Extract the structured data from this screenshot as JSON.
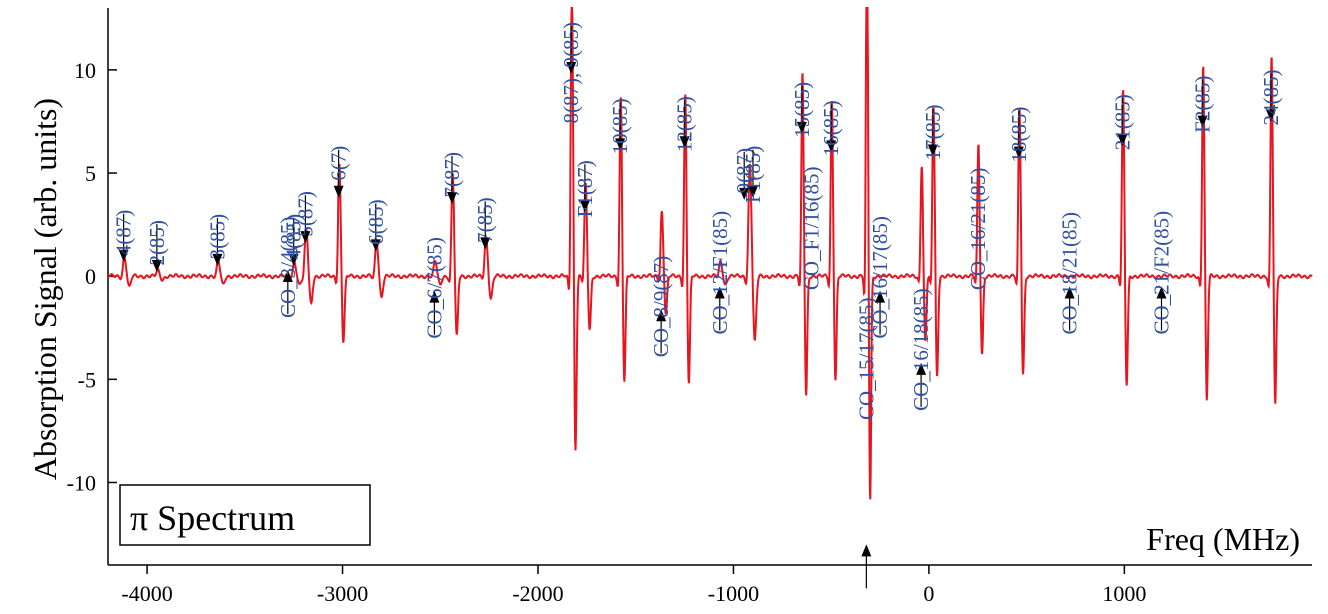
{
  "chart_data": {
    "type": "line",
    "title": "",
    "xlabel": "Freq (MHz)",
    "ylabel": "Absorption Signal (arb. units)",
    "xlim": [
      -4200,
      1960
    ],
    "ylim": [
      -14,
      13
    ],
    "grid": false,
    "legend_box": "π  Spectrum",
    "line_color": "#e8141e",
    "annotation_color": "#2f4f9f",
    "x_ticks": [
      -4000,
      -3000,
      -2000,
      -1000,
      0,
      1000
    ],
    "x_tick_labels": [
      "-4000",
      "-3000",
      "-2000",
      "-1000",
      "0",
      "1000"
    ],
    "y_ticks": [
      -10,
      -5,
      0,
      5,
      10
    ],
    "y_tick_labels": [
      "-10",
      "-5",
      "0",
      "5",
      "10"
    ],
    "peaks": [
      {
        "x": -4120,
        "amp": 0.65,
        "w": 12
      },
      {
        "x": -3950,
        "amp": 0.2,
        "w": 12
      },
      {
        "x": -3640,
        "amp": 0.5,
        "w": 12
      },
      {
        "x": -3250,
        "amp": 0.5,
        "w": 12
      },
      {
        "x": -3190,
        "amp": 1.6,
        "w": 12
      },
      {
        "x": -3020,
        "amp": 3.8,
        "w": 10
      },
      {
        "x": -2830,
        "amp": 1.2,
        "w": 12
      },
      {
        "x": -2530,
        "amp": 0.5,
        "w": 12
      },
      {
        "x": -2440,
        "amp": 3.5,
        "w": 10
      },
      {
        "x": -2270,
        "amp": 1.3,
        "w": 12
      },
      {
        "x": -1830,
        "amp": 10.0,
        "w": 9
      },
      {
        "x": -1760,
        "amp": 3.1,
        "w": 10
      },
      {
        "x": -1580,
        "amp": 6.1,
        "w": 9
      },
      {
        "x": -1370,
        "amp": 2.2,
        "w": 10
      },
      {
        "x": -1250,
        "amp": 6.2,
        "w": 9
      },
      {
        "x": -1070,
        "amp": 0.5,
        "w": 12
      },
      {
        "x": -920,
        "amp": 3.8,
        "w": 12
      },
      {
        "x": -650,
        "amp": 6.9,
        "w": 9
      },
      {
        "x": -500,
        "amp": 6.0,
        "w": 9
      },
      {
        "x": -320,
        "amp": 13.0,
        "w": 8
      },
      {
        "x": -40,
        "amp": 3.8,
        "w": 9
      },
      {
        "x": 20,
        "amp": 5.8,
        "w": 9
      },
      {
        "x": 250,
        "amp": 4.5,
        "w": 9
      },
      {
        "x": 460,
        "amp": 5.7,
        "w": 9
      },
      {
        "x": 990,
        "amp": 6.3,
        "w": 9
      },
      {
        "x": 1400,
        "amp": 7.2,
        "w": 9
      },
      {
        "x": 1750,
        "amp": 7.5,
        "w": 9
      }
    ],
    "annotations": [
      {
        "text": "4(87)",
        "x": -4120,
        "y": 0.7,
        "dir": "down"
      },
      {
        "text": "2(85)",
        "x": -3950,
        "y": 0.2,
        "dir": "down"
      },
      {
        "text": "3(85)",
        "x": -3640,
        "y": 0.5,
        "dir": "down"
      },
      {
        "text": "4(85)",
        "x": -3250,
        "y": 0.5,
        "dir": "down"
      },
      {
        "text": "5(87)",
        "x": -3190,
        "y": 1.6,
        "dir": "down"
      },
      {
        "text": "6(7)",
        "x": -3020,
        "y": 3.8,
        "dir": "down"
      },
      {
        "text": "6(85)",
        "x": -2830,
        "y": 1.2,
        "dir": "down"
      },
      {
        "text": "7(87)",
        "x": -2440,
        "y": 3.5,
        "dir": "down"
      },
      {
        "text": "7(85)",
        "x": -2270,
        "y": 1.3,
        "dir": "down"
      },
      {
        "text": "8(87),  9(85)",
        "x": -1830,
        "y": 9.8,
        "dir": "down"
      },
      {
        "text": "F1(87)",
        "x": -1760,
        "y": 3.1,
        "dir": "down"
      },
      {
        "text": "10(85)",
        "x": -1580,
        "y": 6.1,
        "dir": "down"
      },
      {
        "text": "12(85)",
        "x": -1250,
        "y": 6.2,
        "dir": "down"
      },
      {
        "text": "9(87)",
        "x": -945,
        "y": 3.7,
        "dir": "down"
      },
      {
        "text": "F1(85)",
        "x": -900,
        "y": 3.8,
        "dir": "down"
      },
      {
        "text": "15(85)",
        "x": -650,
        "y": 6.9,
        "dir": "down"
      },
      {
        "text": "16(85)",
        "x": -500,
        "y": 6.0,
        "dir": "down"
      },
      {
        "text": "17(85)",
        "x": 20,
        "y": 5.8,
        "dir": "down"
      },
      {
        "text": "18(85)",
        "x": 460,
        "y": 5.7,
        "dir": "down"
      },
      {
        "text": "21(85)",
        "x": 990,
        "y": 6.3,
        "dir": "down"
      },
      {
        "text": "F2(85)",
        "x": 1400,
        "y": 7.2,
        "dir": "down"
      },
      {
        "text": "24(85)",
        "x": 1750,
        "y": 7.5,
        "dir": "down"
      },
      {
        "text": "CO_3/4(85)",
        "x": -3280,
        "y": 0.3,
        "dir": "up"
      },
      {
        "text": "CO_6/7(85)",
        "x": -2530,
        "y": -0.7,
        "dir": "up"
      },
      {
        "text": "CO_8/9(87)",
        "x": -1370,
        "y": -1.6,
        "dir": "up"
      },
      {
        "text": "CO_12/F1(85)",
        "x": -1070,
        "y": -0.5,
        "dir": "up"
      },
      {
        "text": "CO_F1/16(85)",
        "x": -600,
        "y": 0.0,
        "dir": "none"
      },
      {
        "text": "CO_15/17(85)",
        "x": -320,
        "y": -13.0,
        "dir": "up"
      },
      {
        "text": "CO_16/17(85)",
        "x": -250,
        "y": -0.7,
        "dir": "up"
      },
      {
        "text": "CO_16/18(85)",
        "x": -40,
        "y": -4.2,
        "dir": "up"
      },
      {
        "text": "CO_16/21(85)",
        "x": 250,
        "y": 0.0,
        "dir": "none"
      },
      {
        "text": "CO_18/21(85)",
        "x": 720,
        "y": -0.5,
        "dir": "up"
      },
      {
        "text": "CO_21/F2(85)",
        "x": 1190,
        "y": -0.5,
        "dir": "up"
      }
    ]
  }
}
